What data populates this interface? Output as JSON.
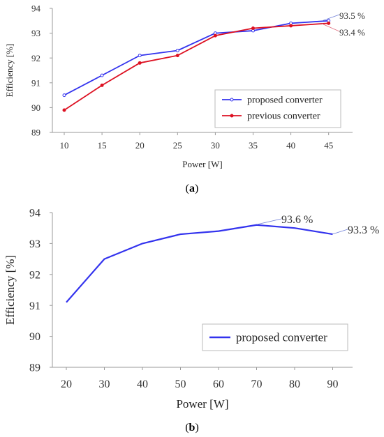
{
  "colors": {
    "proposed": "#3333ee",
    "previous": "#dd1122",
    "axis": "#999999"
  },
  "captions": [
    "(a)",
    "(b)"
  ],
  "chart_data": [
    {
      "type": "line",
      "x": [
        10,
        15,
        20,
        25,
        30,
        35,
        40,
        45
      ],
      "series": [
        {
          "name": "proposed converter",
          "values": [
            90.5,
            91.3,
            92.1,
            92.3,
            93.0,
            93.1,
            93.4,
            93.5
          ],
          "marker": "open-circle"
        },
        {
          "name": "previous converter",
          "values": [
            89.9,
            90.9,
            91.8,
            92.1,
            92.9,
            93.2,
            93.3,
            93.4
          ],
          "marker": "filled-circle"
        }
      ],
      "xlabel": "Power [W]",
      "ylabel": "Efficiency [%]",
      "xticks": [
        "10",
        "15",
        "20",
        "25",
        "30",
        "35",
        "40",
        "45"
      ],
      "yticks": [
        "89",
        "90",
        "91",
        "92",
        "93",
        "94"
      ],
      "ylim": [
        89,
        94
      ],
      "annotations": [
        "93.5 %",
        "93.4 %"
      ],
      "legend_position": "bottom-right",
      "grid": false
    },
    {
      "type": "line",
      "x": [
        20,
        30,
        40,
        50,
        60,
        70,
        80,
        90
      ],
      "series": [
        {
          "name": "proposed converter",
          "values": [
            91.1,
            92.5,
            93.0,
            93.3,
            93.4,
            93.6,
            93.5,
            93.3
          ]
        }
      ],
      "xlabel": "Power [W]",
      "ylabel": "Efficiency [%]",
      "xticks": [
        "20",
        "30",
        "40",
        "50",
        "60",
        "70",
        "80",
        "90"
      ],
      "yticks": [
        "89",
        "90",
        "91",
        "92",
        "93",
        "94"
      ],
      "ylim": [
        89,
        94
      ],
      "annotations": [
        "93.6 %",
        "93.3 %"
      ],
      "legend_position": "bottom-right",
      "grid": false
    }
  ]
}
